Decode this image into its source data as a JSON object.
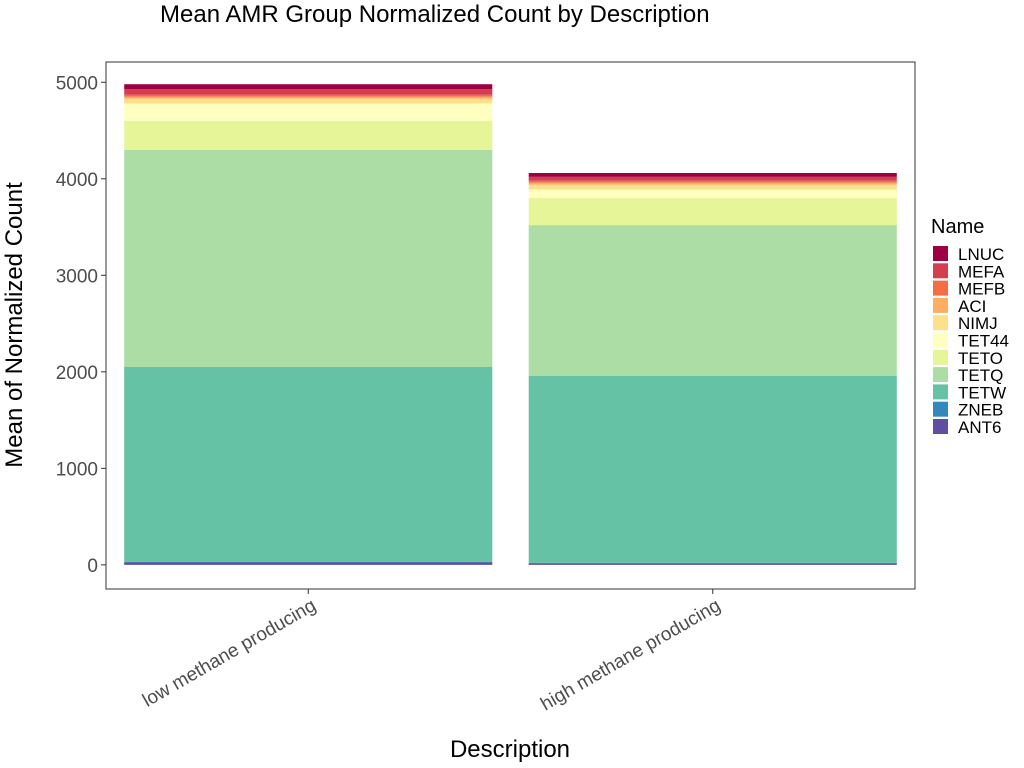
{
  "chart_data": {
    "type": "bar",
    "stacked": true,
    "title": "Mean AMR Group Normalized Count by Description",
    "xlabel": "Description",
    "ylabel": "Mean of Normalized Count",
    "categories": [
      "low methane producing",
      "high methane producing"
    ],
    "ylim": [
      -250,
      5210
    ],
    "yticks": [
      0,
      1000,
      2000,
      3000,
      4000,
      5000
    ],
    "ytick_labels": [
      "0",
      "1000",
      "2000",
      "3000",
      "4000",
      "5000"
    ],
    "grid": false,
    "legend_position": "right",
    "legend_title": "Name",
    "legend_order": [
      "LNUC",
      "MEFA",
      "MEFB",
      "ACI",
      "NIMJ",
      "TET44",
      "TETO",
      "TETQ",
      "TETW",
      "ZNEB",
      "ANT6"
    ],
    "series": [
      {
        "name": "ANT6",
        "color": "#5e4fa2",
        "values": [
          25,
          15
        ]
      },
      {
        "name": "ZNEB",
        "color": "#3288bd",
        "values": [
          5,
          5
        ]
      },
      {
        "name": "TETW",
        "color": "#66c2a5",
        "values": [
          2020,
          1940
        ]
      },
      {
        "name": "TETQ",
        "color": "#abdda4",
        "values": [
          2250,
          1560
        ]
      },
      {
        "name": "TETO",
        "color": "#e6f598",
        "values": [
          300,
          280
        ]
      },
      {
        "name": "TET44",
        "color": "#ffffbf",
        "values": [
          180,
          90
        ]
      },
      {
        "name": "NIMJ",
        "color": "#fee08b",
        "values": [
          50,
          50
        ]
      },
      {
        "name": "ACI",
        "color": "#fdae61",
        "values": [
          20,
          20
        ]
      },
      {
        "name": "MEFB",
        "color": "#f46d43",
        "values": [
          20,
          20
        ]
      },
      {
        "name": "MEFA",
        "color": "#d53e4f",
        "values": [
          60,
          40
        ]
      },
      {
        "name": "LNUC",
        "color": "#9e0142",
        "values": [
          50,
          40
        ]
      }
    ]
  }
}
